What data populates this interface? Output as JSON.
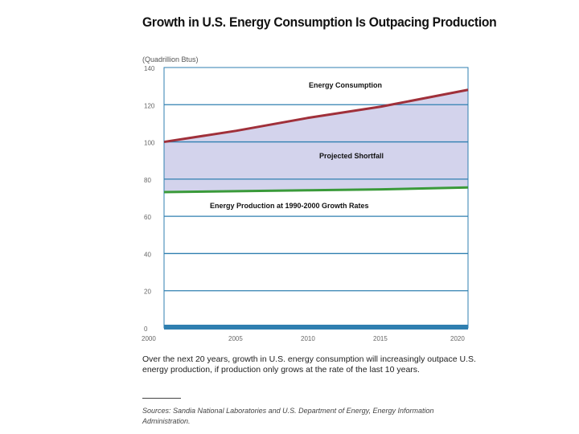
{
  "chart_data": {
    "type": "area",
    "title": "Growth in U.S. Energy Consumption Is Outpacing Production",
    "ylabel": "(Quadrillion Btus)",
    "xlabel": "",
    "xlim": [
      2000,
      2021
    ],
    "ylim": [
      0,
      140
    ],
    "xticks": [
      2000,
      2005,
      2010,
      2015,
      2020
    ],
    "yticks": [
      0,
      20,
      40,
      60,
      80,
      100,
      120,
      140
    ],
    "grid": true,
    "series": [
      {
        "name": "Energy Consumption",
        "color": "#a0303a",
        "x": [
          2000,
          2005,
          2010,
          2015,
          2021
        ],
        "values": [
          100,
          106,
          113,
          119,
          128
        ]
      },
      {
        "name": "Energy Production at 1990-2000 Growth Rates",
        "color": "#3a9a3a",
        "x": [
          2000,
          2005,
          2010,
          2015,
          2021
        ],
        "values": [
          73,
          73.5,
          74,
          74.5,
          75.5
        ]
      }
    ],
    "annotations": [
      "Energy Consumption",
      "Projected Shortfall",
      "Energy Production at 1990-2000 Growth Rates"
    ],
    "fill": {
      "label": "Projected Shortfall",
      "color": "#d3d3ec"
    },
    "grid_color": "#2f7fb0"
  },
  "caption": "Over the next 20 years, growth in U.S. energy consumption will increasingly outpace U.S. energy production, if production only grows at the rate of the last 10 years.",
  "source": "Sources: Sandia National Laboratories and U.S. Department of Energy, Energy Information Administration."
}
